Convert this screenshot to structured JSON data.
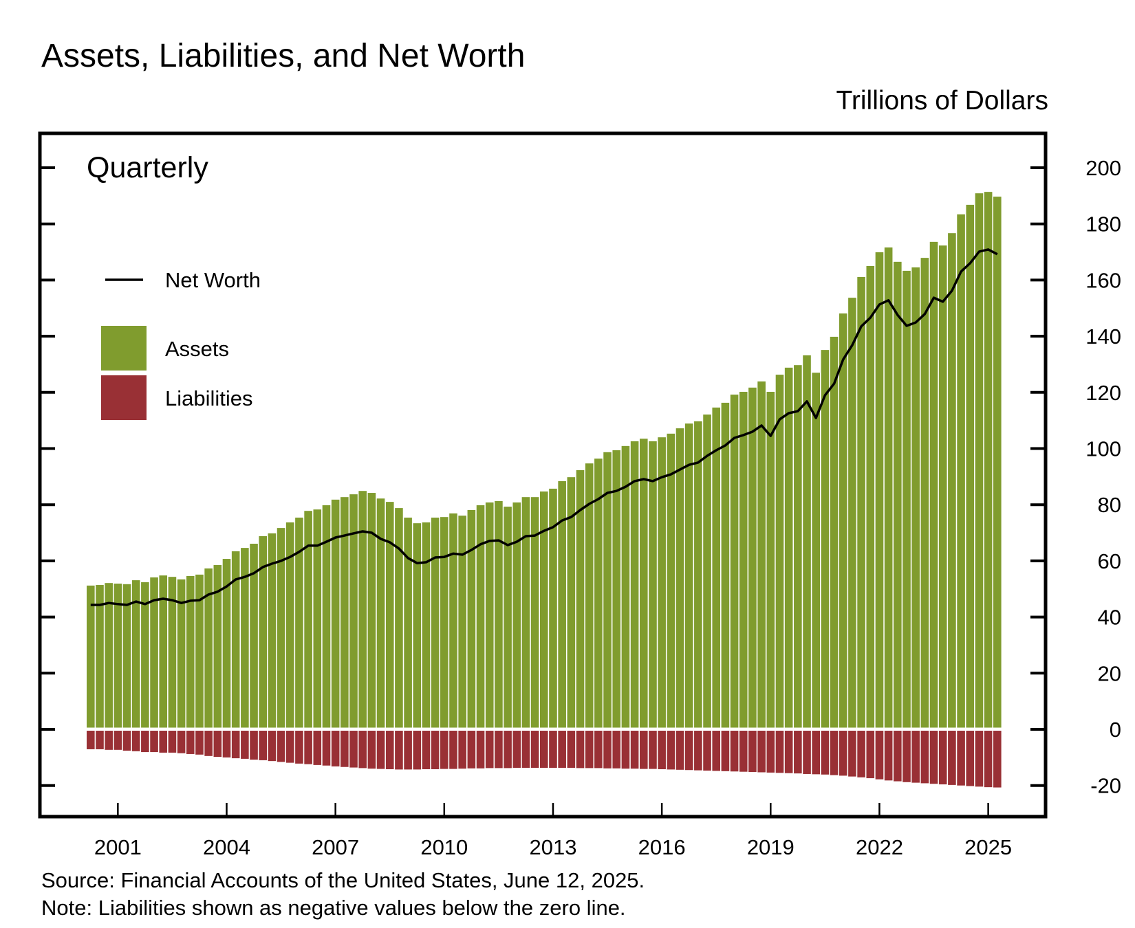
{
  "chart_data": {
    "type": "bar",
    "title": "Assets, Liabilities, and Net Worth",
    "unit_label": "Trillions of Dollars",
    "frequency_label": "Quarterly",
    "source": "Source: Financial Accounts of the United States, June 12, 2025.",
    "note": "Note: Liabilities shown as negative values below the zero line.",
    "x_start": "2000 Q1",
    "x_end": "2025 Q1",
    "x_ticks": [
      "2001",
      "2004",
      "2007",
      "2010",
      "2013",
      "2016",
      "2019",
      "2022",
      "2025"
    ],
    "y_ticks": [
      "200",
      "180",
      "160",
      "140",
      "120",
      "100",
      "80",
      "60",
      "40",
      "20",
      "0",
      "-20"
    ],
    "ylim": [
      -30,
      225
    ],
    "grid": false,
    "legend_placement": "top-left",
    "colors": {
      "assets": "#809c2e",
      "liabilities": "#993035",
      "net_worth": "#000000"
    },
    "legend": [
      {
        "key": "net_worth",
        "label": "Net Worth",
        "style": "line"
      },
      {
        "key": "assets",
        "label": "Assets",
        "style": "swatch"
      },
      {
        "key": "liabilities",
        "label": "Liabilities",
        "style": "swatch"
      }
    ],
    "series": [
      {
        "name": "Assets",
        "key": "assets",
        "values": [
          51.2,
          51.4,
          52.1,
          51.9,
          51.7,
          53.1,
          52.4,
          54.1,
          54.8,
          54.3,
          53.4,
          54.6,
          55.1,
          57.3,
          58.5,
          60.7,
          63.4,
          64.6,
          66.1,
          68.8,
          69.8,
          71.7,
          73.7,
          75.4,
          77.8,
          78.3,
          79.8,
          81.8,
          82.7,
          83.7,
          84.9,
          84.2,
          82.2,
          81.0,
          78.8,
          75.4,
          73.4,
          73.7,
          75.4,
          75.6,
          76.9,
          76.1,
          78.1,
          79.8,
          80.8,
          81.3,
          79.3,
          80.8,
          82.7,
          82.7,
          84.7,
          85.7,
          88.4,
          89.8,
          92.3,
          94.7,
          96.4,
          98.7,
          99.4,
          100.9,
          102.6,
          103.5,
          102.6,
          104.0,
          105.3,
          107.2,
          108.9,
          109.7,
          112.1,
          114.6,
          116.3,
          119.2,
          120.2,
          121.7,
          123.9,
          120.2,
          126.3,
          128.8,
          129.7,
          133.2,
          127.0,
          135.1,
          139.8,
          148.1,
          153.7,
          161.1,
          165.0,
          169.9,
          171.6,
          166.5,
          163.3,
          164.5,
          167.9,
          173.6,
          172.3,
          176.7,
          183.4,
          186.8,
          190.9,
          191.4,
          189.7
        ]
      },
      {
        "name": "Liabilities",
        "key": "liabilities",
        "values": [
          -7.1,
          -7.1,
          -7.3,
          -7.3,
          -7.6,
          -7.8,
          -8.1,
          -8.1,
          -8.3,
          -8.3,
          -8.5,
          -8.8,
          -9.0,
          -9.5,
          -9.8,
          -10.0,
          -10.3,
          -10.5,
          -10.8,
          -11.0,
          -11.3,
          -11.6,
          -11.9,
          -12.2,
          -12.4,
          -12.7,
          -12.9,
          -13.2,
          -13.4,
          -13.6,
          -13.8,
          -14.0,
          -14.1,
          -14.2,
          -14.3,
          -14.3,
          -14.3,
          -14.2,
          -14.2,
          -14.1,
          -14.1,
          -14.0,
          -13.9,
          -13.9,
          -13.8,
          -13.8,
          -13.8,
          -13.7,
          -13.7,
          -13.7,
          -13.7,
          -13.7,
          -13.7,
          -13.7,
          -13.8,
          -13.8,
          -13.8,
          -13.9,
          -13.9,
          -14.0,
          -14.0,
          -14.1,
          -14.1,
          -14.2,
          -14.3,
          -14.4,
          -14.5,
          -14.6,
          -14.7,
          -14.8,
          -14.9,
          -15.0,
          -15.1,
          -15.2,
          -15.3,
          -15.4,
          -15.5,
          -15.6,
          -15.7,
          -15.9,
          -16.0,
          -16.1,
          -16.3,
          -16.5,
          -16.8,
          -17.1,
          -17.4,
          -17.8,
          -18.2,
          -18.5,
          -18.8,
          -19.0,
          -19.2,
          -19.4,
          -19.6,
          -19.8,
          -20.0,
          -20.2,
          -20.4,
          -20.6,
          -20.7
        ]
      },
      {
        "name": "Net Worth",
        "key": "net_worth",
        "values": [
          44.3,
          44.3,
          45.0,
          44.6,
          44.3,
          45.5,
          44.6,
          46.0,
          46.5,
          46.0,
          45.0,
          45.8,
          46.0,
          48.0,
          49.0,
          50.9,
          53.4,
          54.3,
          55.6,
          57.8,
          59.0,
          60.0,
          61.4,
          63.2,
          65.4,
          65.4,
          66.8,
          68.3,
          69.0,
          69.8,
          70.5,
          70.0,
          67.8,
          66.6,
          64.4,
          61.0,
          59.2,
          59.5,
          61.2,
          61.4,
          62.6,
          62.2,
          63.9,
          65.9,
          67.1,
          67.3,
          65.6,
          66.8,
          68.8,
          69.0,
          70.7,
          72.0,
          74.4,
          75.6,
          78.1,
          80.3,
          82.0,
          84.2,
          84.9,
          86.4,
          88.4,
          89.1,
          88.4,
          89.8,
          90.8,
          92.5,
          94.2,
          95.0,
          97.4,
          99.4,
          101.1,
          103.8,
          104.8,
          106.0,
          108.2,
          104.5,
          110.4,
          112.6,
          113.3,
          116.8,
          110.9,
          119.0,
          123.1,
          131.7,
          136.8,
          143.5,
          146.6,
          151.3,
          152.8,
          147.6,
          143.7,
          144.9,
          147.9,
          153.7,
          152.3,
          156.2,
          163.0,
          166.0,
          170.1,
          170.9,
          169.2
        ]
      }
    ]
  }
}
